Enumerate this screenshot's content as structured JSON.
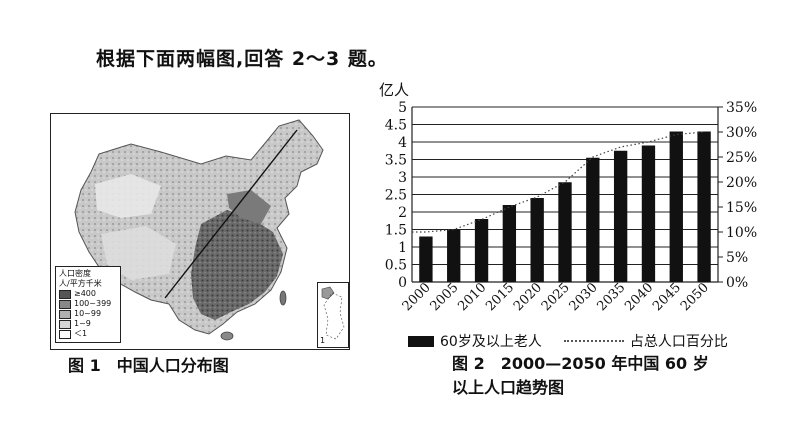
{
  "intro": "根据下面两幅图,回答 2～3 题。",
  "figure1": {
    "caption": "图 1　中国人口分布图",
    "legend_title": "人口密度",
    "legend_unit": "人/平方千米",
    "legend_items": [
      "≥400",
      "100~399",
      "10~99",
      "1~9",
      "＜1"
    ],
    "legend_colors": [
      "#555555",
      "#888888",
      "#b0b0b0",
      "#d4d4d4",
      "#ffffff"
    ],
    "inset_label": "1"
  },
  "figure2": {
    "caption_line1": "图 2　2000—2050 年中国 60 岁",
    "caption_line2": "以上人口趋势图",
    "legend_bar": "60岁及以上老人",
    "legend_line": "占总人口百分比"
  },
  "chart_data": {
    "type": "bar",
    "categories": [
      "2000",
      "2005",
      "2010",
      "2015",
      "2020",
      "2025",
      "2030",
      "2035",
      "2040",
      "2045",
      "2050"
    ],
    "ylabel": "亿人",
    "ylim": [
      0,
      5
    ],
    "yticks": [
      "0",
      "0.5",
      "1",
      "1.5",
      "2",
      "2.5",
      "3",
      "3.5",
      "4",
      "4.5",
      "5"
    ],
    "y2lim": [
      0,
      35
    ],
    "y2ticks": [
      "0%",
      "5%",
      "10%",
      "15%",
      "20%",
      "25%",
      "30%",
      "35%"
    ],
    "series": [
      {
        "name": "60岁及以上老人",
        "kind": "bar",
        "values": [
          1.3,
          1.5,
          1.8,
          2.2,
          2.4,
          2.85,
          3.55,
          3.75,
          3.9,
          4.3,
          4.3
        ]
      },
      {
        "name": "占总人口百分比",
        "kind": "dotted-line",
        "axis": "right",
        "values": [
          10,
          10.5,
          12.5,
          15,
          17,
          20,
          25,
          27,
          28,
          29.5,
          30
        ]
      }
    ]
  }
}
